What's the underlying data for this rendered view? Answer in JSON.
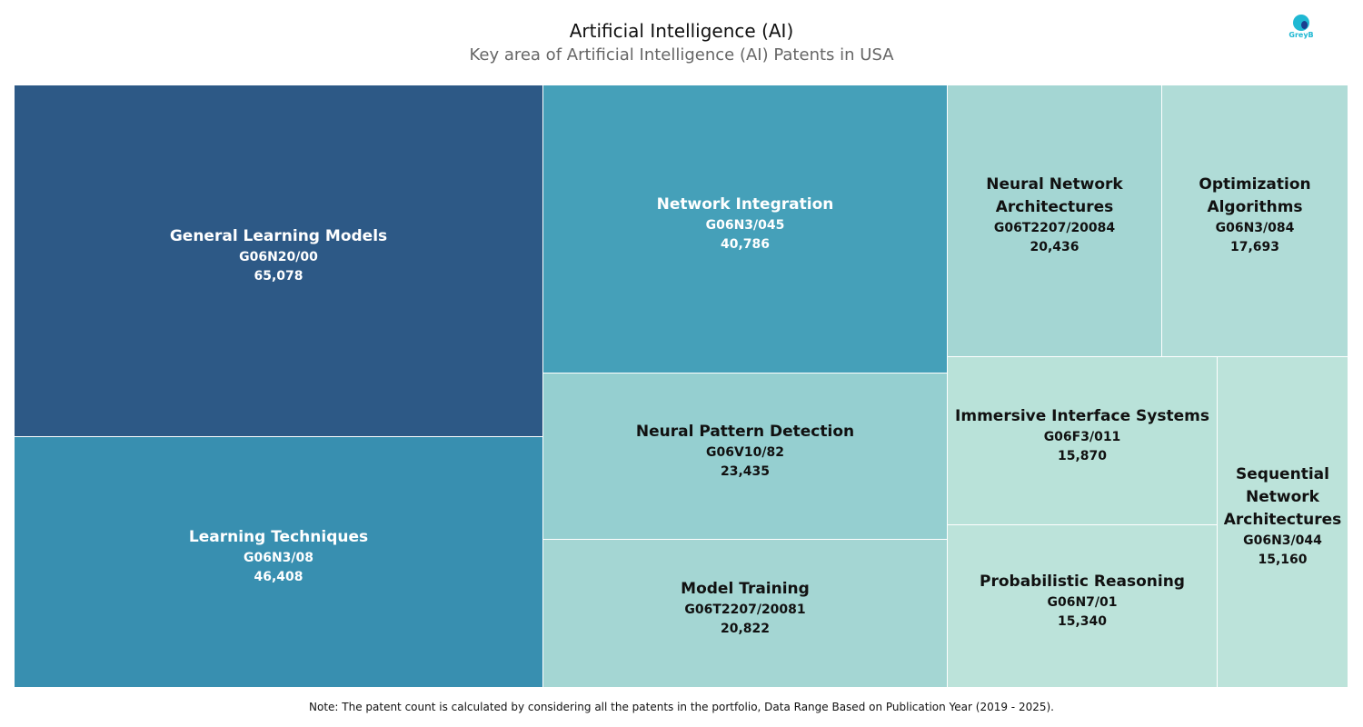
{
  "chart_data": {
    "type": "treemap",
    "title": "Artificial Intelligence (AI)",
    "subtitle": "Key area of Artificial Intelligence (AI) Patents in USA",
    "items": [
      {
        "name": "General Learning Models",
        "code": "G06N20/00",
        "value": 65078,
        "label": "65,078",
        "color": "#2d5986",
        "text_color": "#ffffff"
      },
      {
        "name": "Learning Techniques",
        "code": "G06N3/08",
        "value": 46408,
        "label": "46,408",
        "color": "#388fb0",
        "text_color": "#ffffff"
      },
      {
        "name": "Network Integration",
        "code": "G06N3/045",
        "value": 40786,
        "label": "40,786",
        "color": "#45a0b9",
        "text_color": "#ffffff"
      },
      {
        "name": "Neural Pattern Detection",
        "code": "G06V10/82",
        "value": 23435,
        "label": "23,435",
        "color": "#95cfd0",
        "text_color": "#111111"
      },
      {
        "name": "Model Training",
        "code": "G06T2207/20081",
        "value": 20822,
        "label": "20,822",
        "color": "#a4d6d3",
        "text_color": "#111111"
      },
      {
        "name": "Neural Network Architectures",
        "code": "G06T2207/20084",
        "value": 20436,
        "label": "20,436",
        "color": "#a4d6d3",
        "text_color": "#111111"
      },
      {
        "name": "Optimization Algorithms",
        "code": "G06N3/084",
        "value": 17693,
        "label": "17,693",
        "color": "#b0dcd7",
        "text_color": "#111111"
      },
      {
        "name": "Immersive Interface Systems",
        "code": "G06F3/011",
        "value": 15870,
        "label": "15,870",
        "color": "#b9e2d9",
        "text_color": "#111111"
      },
      {
        "name": "Probabilistic Reasoning",
        "code": "G06N7/01",
        "value": 15340,
        "label": "15,340",
        "color": "#bce3da",
        "text_color": "#111111"
      },
      {
        "name": "Sequential Network Architectures",
        "code": "G06N3/044",
        "value": 15160,
        "label": "15,160",
        "color": "#bce3da",
        "text_color": "#111111"
      }
    ]
  },
  "logo_text": "GreyB",
  "note": "Note: The patent count is calculated by considering all the patents in the portfolio, Data Range Based on Publication Year (2019 - 2025)."
}
